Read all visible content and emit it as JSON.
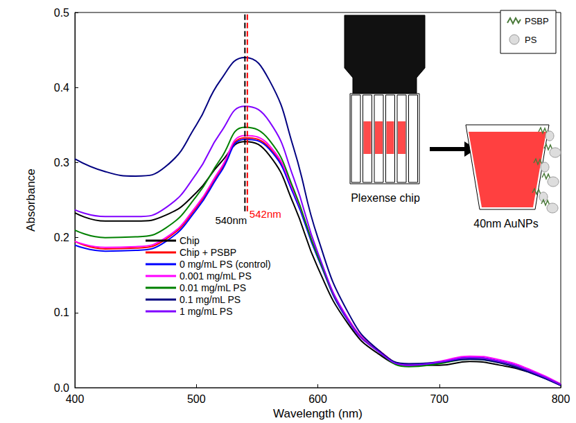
{
  "chart_data": {
    "type": "line",
    "x_label": "Wavelength (nm)",
    "y_label": "Absorbance",
    "x": [
      400,
      425,
      450,
      475,
      500,
      520,
      540,
      560,
      580,
      600,
      625,
      650,
      675,
      700,
      725,
      750,
      775,
      800
    ],
    "xlim": [
      400,
      800
    ],
    "xticks": [
      400,
      500,
      600,
      700,
      800
    ],
    "ylim": [
      0,
      0.5
    ],
    "yticks": [
      {
        "value": 0,
        "label": "0.0"
      },
      0.1,
      0.2,
      0.3,
      0.4,
      0.5
    ],
    "grid": false,
    "legend": "lower left",
    "series": [
      {
        "name": "Chip",
        "color": "#000000",
        "values": [
          0.233,
          0.222,
          0.222,
          0.23,
          0.26,
          0.3,
          0.328,
          0.31,
          0.245,
          0.16,
          0.085,
          0.045,
          0.03,
          0.03,
          0.035,
          0.03,
          0.02,
          0.003
        ]
      },
      {
        "name": "Chip + PSBP",
        "color": "#ff0000",
        "values": [
          0.195,
          0.185,
          0.186,
          0.198,
          0.24,
          0.29,
          0.333,
          0.32,
          0.26,
          0.175,
          0.09,
          0.05,
          0.03,
          0.033,
          0.04,
          0.035,
          0.022,
          0.004
        ]
      },
      {
        "name": "0 mg/mL PS (control)",
        "color": "#0000ff",
        "values": [
          0.19,
          0.182,
          0.183,
          0.195,
          0.237,
          0.287,
          0.331,
          0.318,
          0.258,
          0.173,
          0.089,
          0.049,
          0.03,
          0.033,
          0.04,
          0.035,
          0.022,
          0.004
        ]
      },
      {
        "name": "0.001 mg/mL PS",
        "color": "#ff00ff",
        "values": [
          0.195,
          0.187,
          0.188,
          0.2,
          0.242,
          0.292,
          0.336,
          0.323,
          0.262,
          0.177,
          0.092,
          0.05,
          0.03,
          0.035,
          0.042,
          0.037,
          0.024,
          0.005
        ]
      },
      {
        "name": "0.01 mg/mL PS",
        "color": "#008000",
        "values": [
          0.21,
          0.2,
          0.201,
          0.213,
          0.255,
          0.305,
          0.347,
          0.33,
          0.265,
          0.175,
          0.09,
          0.048,
          0.028,
          0.032,
          0.038,
          0.033,
          0.021,
          0.004
        ]
      },
      {
        "name": "0.1 mg/mL PS",
        "color": "#000080",
        "values": [
          0.305,
          0.288,
          0.282,
          0.295,
          0.35,
          0.41,
          0.44,
          0.41,
          0.32,
          0.2,
          0.1,
          0.05,
          0.032,
          0.034,
          0.038,
          0.033,
          0.02,
          0.003
        ]
      },
      {
        "name": "1 mg/mL PS",
        "color": "#8000ff",
        "values": [
          0.237,
          0.228,
          0.228,
          0.24,
          0.285,
          0.34,
          0.375,
          0.355,
          0.28,
          0.18,
          0.09,
          0.048,
          0.03,
          0.034,
          0.04,
          0.035,
          0.022,
          0.004
        ]
      }
    ],
    "annotations": [
      {
        "x": 540,
        "y_from": 0.235,
        "label": "540nm",
        "color": "#000000",
        "line_style": "dashed"
      },
      {
        "x": 542,
        "y_from": 0.235,
        "label": "542nm",
        "color": "#ff0000",
        "line_style": "dashed"
      }
    ],
    "inset": {
      "legend": [
        "PSBP",
        "PS"
      ],
      "chip_label": "Plexense chip",
      "particle_label": "40nm AuNPs"
    }
  }
}
